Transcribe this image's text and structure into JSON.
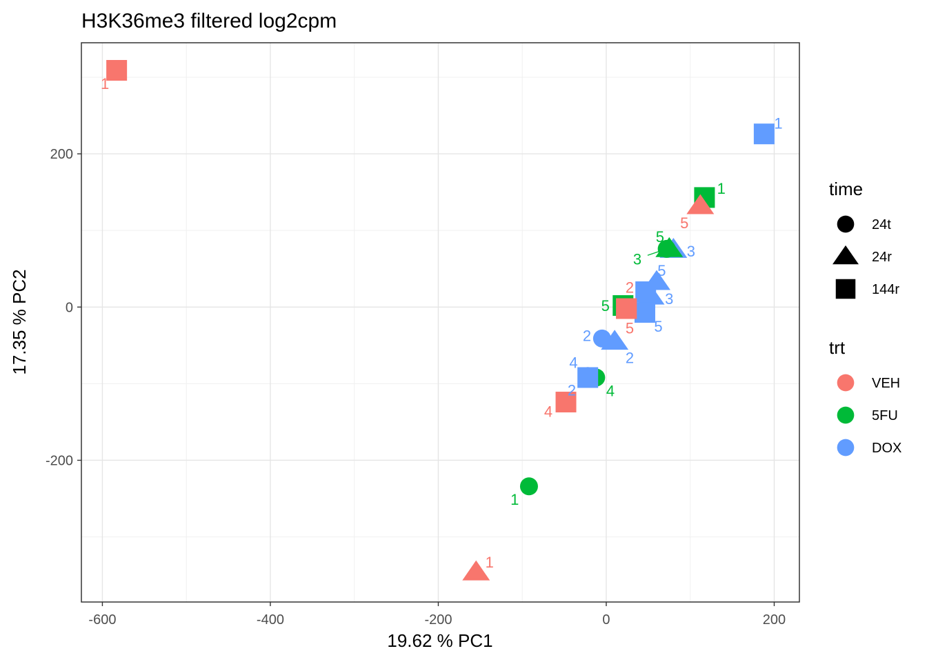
{
  "chart_data": {
    "type": "scatter",
    "title": "H3K36me3 filtered log2cpm",
    "xlabel": "19.62 % PC1",
    "ylabel": "17.35 % PC2",
    "xlim": [
      -625,
      230
    ],
    "ylim": [
      -385,
      345
    ],
    "x_ticks": [
      -600,
      -400,
      -200,
      0,
      200
    ],
    "x_tick_labels": [
      "-600",
      "-400",
      "-200",
      "0",
      "200"
    ],
    "y_ticks": [
      -200,
      0,
      200
    ],
    "y_tick_labels": [
      "-200",
      "0",
      "200"
    ],
    "minor_x": [
      -500,
      -300,
      -100,
      100
    ],
    "minor_y": [
      -300,
      -100,
      100,
      300
    ],
    "grid": true,
    "legend_position": "right",
    "colors": {
      "VEH": "#F8766D",
      "5FU": "#00BA38",
      "DOX": "#619CFF"
    },
    "legends": [
      {
        "title": "time",
        "entries": [
          {
            "label": "24t",
            "shape": "circle"
          },
          {
            "label": "24r",
            "shape": "triangle"
          },
          {
            "label": "144r",
            "shape": "square"
          }
        ]
      },
      {
        "title": "trt",
        "entries": [
          {
            "label": "VEH",
            "shape": "circle"
          },
          {
            "label": "5FU",
            "shape": "circle"
          },
          {
            "label": "DOX",
            "shape": "circle"
          }
        ]
      }
    ],
    "points": [
      {
        "x": -583,
        "y": 309,
        "trt": "VEH",
        "time": "144r",
        "label": "1",
        "lx": -597,
        "ly": 292
      },
      {
        "x": 188,
        "y": 226,
        "trt": "DOX",
        "time": "144r",
        "label": "1",
        "lx": 205,
        "ly": 240
      },
      {
        "x": 117,
        "y": 143,
        "trt": "5FU",
        "time": "144r",
        "label": "1",
        "lx": 137,
        "ly": 155
      },
      {
        "x": 112,
        "y": 132,
        "trt": "VEH",
        "time": "24r",
        "label": "5",
        "lx": 93,
        "ly": 110
      },
      {
        "x": 80,
        "y": 75,
        "trt": "DOX",
        "time": "24r",
        "label": "3",
        "lx": 101,
        "ly": 73
      },
      {
        "x": 75,
        "y": 76,
        "trt": "5FU",
        "time": "24r",
        "label": "5",
        "lx": 64,
        "ly": 92
      },
      {
        "x": 72,
        "y": 76,
        "trt": "5FU",
        "time": "24t",
        "label": "3",
        "lx": 37,
        "ly": 63
      },
      {
        "x": 60,
        "y": 33,
        "trt": "DOX",
        "time": "24r",
        "label": "5",
        "lx": 66,
        "ly": 48
      },
      {
        "x": 53,
        "y": 14,
        "trt": "DOX",
        "time": "24r",
        "label": "3",
        "lx": 75,
        "ly": 11
      },
      {
        "x": 47,
        "y": 20,
        "trt": "DOX",
        "time": "144r",
        "label": "",
        "lx": 0,
        "ly": 0
      },
      {
        "x": 46,
        "y": -7,
        "trt": "DOX",
        "time": "144r",
        "label": "5",
        "lx": 62,
        "ly": -25
      },
      {
        "x": 20,
        "y": 2,
        "trt": "5FU",
        "time": "144r",
        "label": "5",
        "lx": -1,
        "ly": 2
      },
      {
        "x": 24,
        "y": -2,
        "trt": "VEH",
        "time": "144r",
        "label": "2",
        "lx": 28,
        "ly": 26
      },
      {
        "x": 24,
        "y": -2,
        "trt": "VEH",
        "time": "144r",
        "label": "5",
        "lx": 28,
        "ly": -27
      },
      {
        "x": 10,
        "y": -45,
        "trt": "DOX",
        "time": "24r",
        "label": "2",
        "lx": 28,
        "ly": -66
      },
      {
        "x": -5,
        "y": -41,
        "trt": "DOX",
        "time": "24t",
        "label": "2",
        "lx": -23,
        "ly": -37
      },
      {
        "x": -12,
        "y": -92,
        "trt": "5FU",
        "time": "24t",
        "label": "4",
        "lx": 5,
        "ly": -109
      },
      {
        "x": -22,
        "y": -92,
        "trt": "DOX",
        "time": "144r",
        "label": "4",
        "lx": -39,
        "ly": -72
      },
      {
        "x": -22,
        "y": -90,
        "trt": "DOX",
        "time": "24t",
        "label": "2",
        "lx": -41,
        "ly": -108
      },
      {
        "x": -48,
        "y": -124,
        "trt": "VEH",
        "time": "144r",
        "label": "4",
        "lx": -69,
        "ly": -136
      },
      {
        "x": -92,
        "y": -234,
        "trt": "5FU",
        "time": "24t",
        "label": "1",
        "lx": -109,
        "ly": -251
      },
      {
        "x": -155,
        "y": -346,
        "trt": "VEH",
        "time": "24r",
        "label": "1",
        "lx": -139,
        "ly": -333
      }
    ]
  }
}
